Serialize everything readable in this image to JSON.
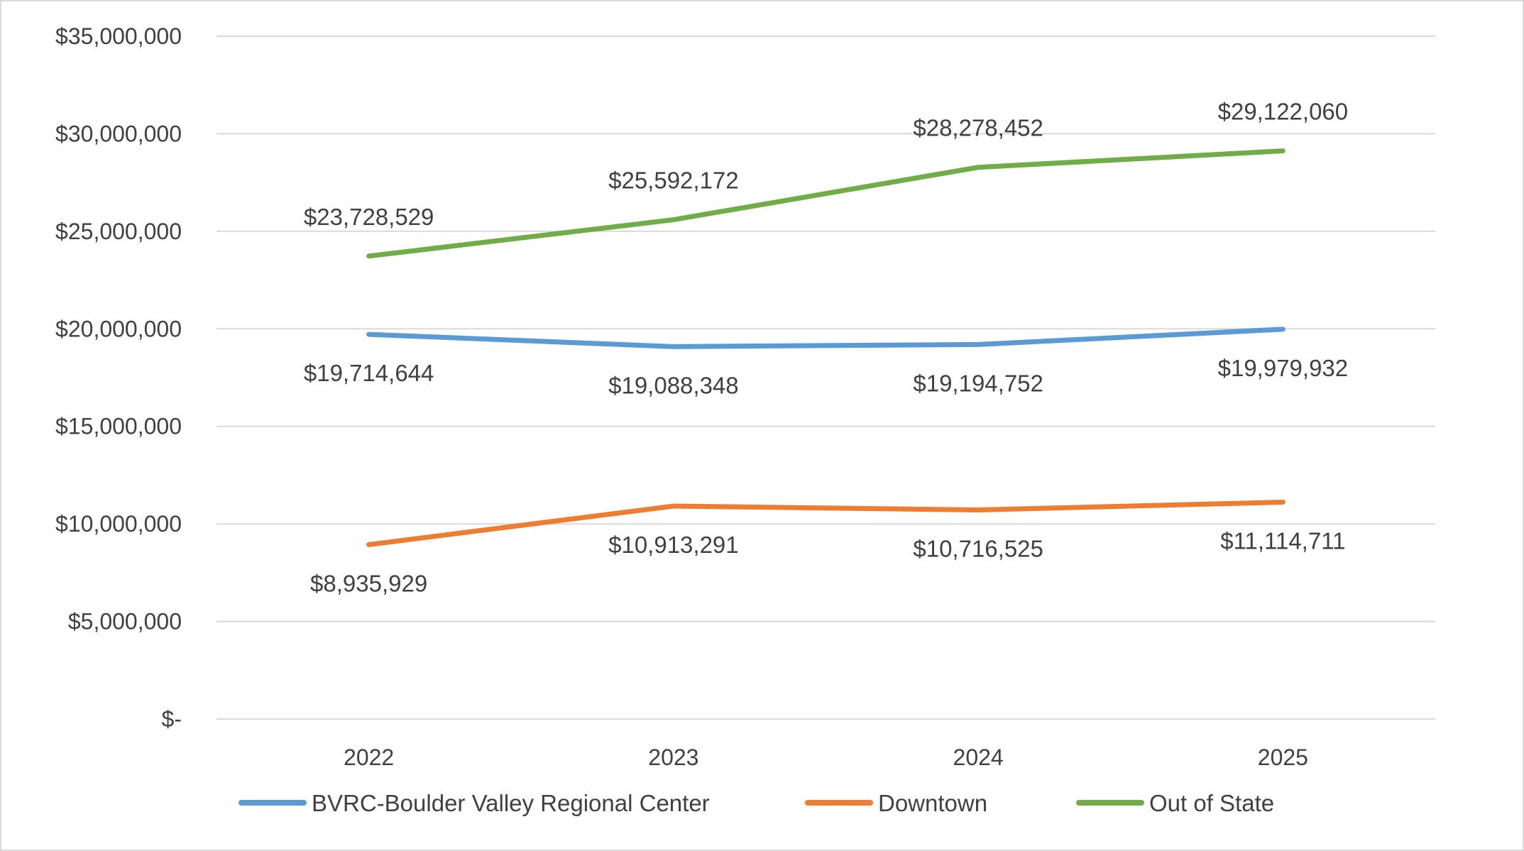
{
  "chart_data": {
    "type": "line",
    "title": "",
    "xlabel": "",
    "ylabel": "",
    "categories": [
      "2022",
      "2023",
      "2024",
      "2025"
    ],
    "ylim": [
      0,
      35000000
    ],
    "yticks": [
      0,
      5000000,
      10000000,
      15000000,
      20000000,
      25000000,
      30000000,
      35000000
    ],
    "ytick_labels": [
      "$-",
      "$5,000,000",
      "$10,000,000",
      "$15,000,000",
      "$20,000,000",
      "$25,000,000",
      "$30,000,000",
      "$35,000,000"
    ],
    "grid": true,
    "legend_position": "bottom",
    "series": [
      {
        "name": "BVRC-Boulder Valley Regional Center",
        "color": "#5B9BD5",
        "label_position": "below",
        "values": [
          19714644,
          19088348,
          19194752,
          19979932
        ],
        "labels": [
          "$19,714,644",
          "$19,088,348",
          "$19,194,752",
          "$19,979,932"
        ]
      },
      {
        "name": "Downtown",
        "color": "#ED7D31",
        "label_position": "below",
        "values": [
          8935929,
          10913291,
          10716525,
          11114711
        ],
        "labels": [
          "$8,935,929",
          "$10,913,291",
          "$10,716,525",
          "$11,114,711"
        ]
      },
      {
        "name": "Out of State",
        "color": "#70AD47",
        "label_position": "above",
        "values": [
          23728529,
          25592172,
          28278452,
          29122060
        ],
        "labels": [
          "$23,728,529",
          "$25,592,172",
          "$28,278,452",
          "$29,122,060"
        ]
      }
    ]
  }
}
